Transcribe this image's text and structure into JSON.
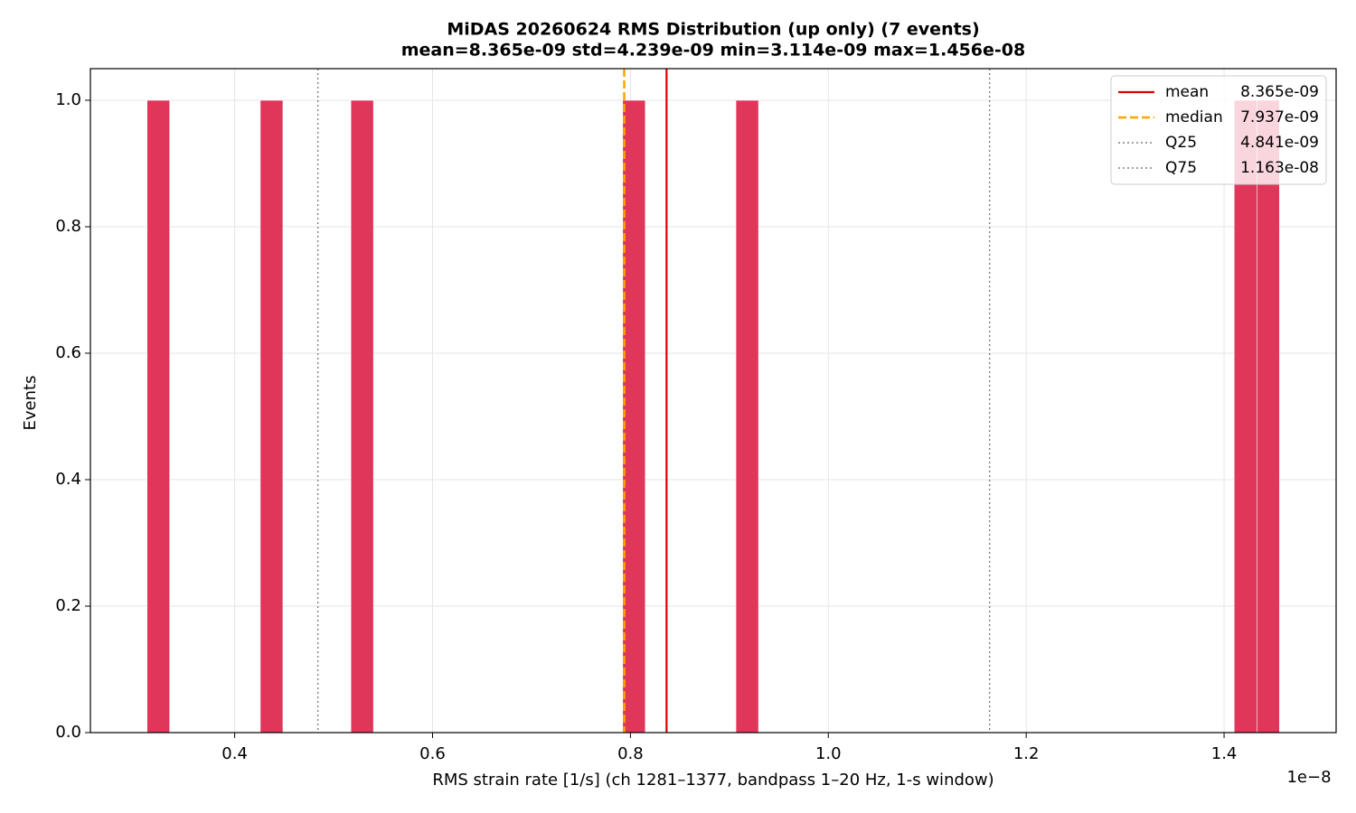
{
  "chart_data": {
    "type": "histogram",
    "title": "MiDAS 20260624  RMS Distribution  (up only)  (7 events)",
    "subtitle": "mean=8.365e-09  std=4.239e-09  min=3.114e-09  max=1.456e-08",
    "xlabel": "RMS strain rate [1/s]  (ch 1281–1377, bandpass 1–20 Hz, 1-s window)",
    "ylabel": "Events",
    "x_offset_label": "1e−8",
    "color": "#e0365a",
    "bins": [
      0.3114,
      0.334292,
      0.357184,
      0.380076,
      0.402968,
      0.42586,
      0.448752,
      0.471644,
      0.494536,
      0.517428,
      0.54032,
      0.563212,
      0.586104,
      0.608996,
      0.631888,
      0.65478,
      0.677672,
      0.700564,
      0.723456,
      0.746348,
      0.76924,
      0.792132,
      0.815024,
      0.837916,
      0.860808,
      0.8837,
      0.906592,
      0.929484,
      0.952376,
      0.975268,
      0.99816,
      1.021052,
      1.043944,
      1.066836,
      1.089728,
      1.11262,
      1.135512,
      1.158404,
      1.181296,
      1.204188,
      1.22708,
      1.249972,
      1.272864,
      1.295756,
      1.318648,
      1.34154,
      1.364432,
      1.387324,
      1.410216,
      1.433108,
      1.456
    ],
    "values": [
      1,
      0,
      0,
      0,
      0,
      1,
      0,
      0,
      0,
      1,
      0,
      0,
      0,
      0,
      0,
      0,
      0,
      0,
      0,
      0,
      0,
      1,
      0,
      0,
      0,
      0,
      1,
      0,
      0,
      0,
      0,
      0,
      0,
      0,
      0,
      0,
      0,
      0,
      0,
      0,
      0,
      0,
      0,
      0,
      0,
      0,
      0,
      0,
      1,
      1
    ],
    "lines": [
      {
        "name": "mean",
        "label": "8.365e-09",
        "value": 0.8365,
        "color": "#e00000",
        "style": "solid"
      },
      {
        "name": "median",
        "label": "7.937e-09",
        "value": 0.7937,
        "color": "#ffa500",
        "style": "dashed"
      },
      {
        "name": "Q25",
        "label": "4.841e-09",
        "value": 0.4841,
        "color": "#808080",
        "style": "dotted"
      },
      {
        "name": "Q75",
        "label": "1.163e-08",
        "value": 1.163,
        "color": "#808080",
        "style": "dotted"
      }
    ],
    "xlim": [
      0.25417,
      1.51323
    ],
    "ylim": [
      0,
      1.05
    ],
    "xticks": [
      0.4,
      0.6,
      0.8,
      {
        "value": 1.0,
        "label": "1.0"
      },
      1.2,
      1.4
    ],
    "yticks": [
      {
        "value": 0,
        "label": "0.0"
      },
      0.2,
      0.4,
      0.6,
      0.8,
      {
        "value": 1.0,
        "label": "1.0"
      }
    ],
    "grid": true,
    "legend": "upper right"
  }
}
